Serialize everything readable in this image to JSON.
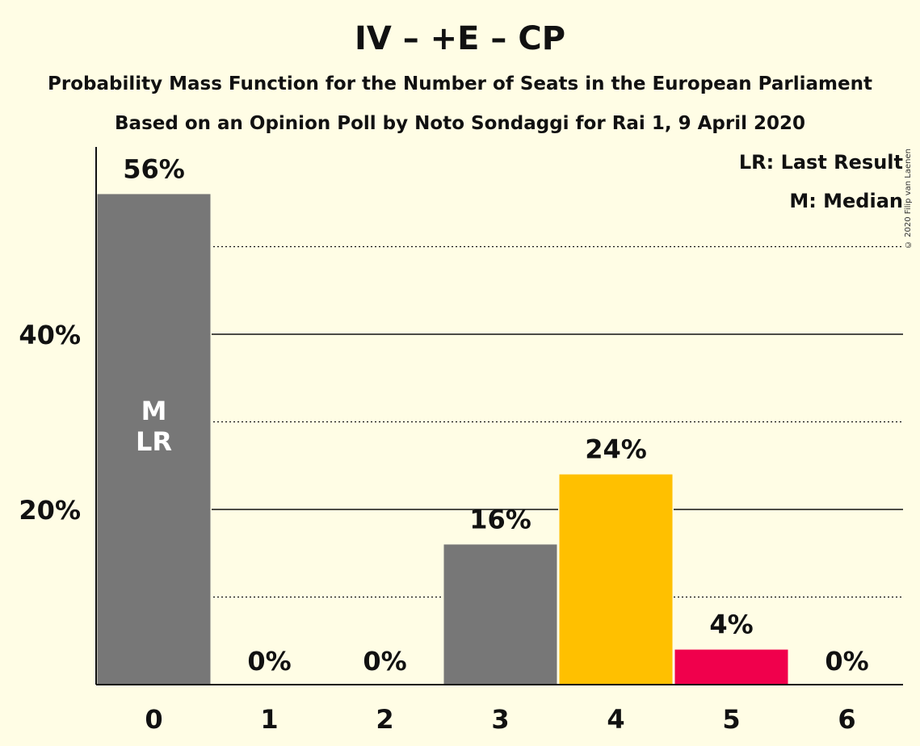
{
  "title": "IV – +E – CP",
  "subtitle": "Probability Mass Function for the Number of Seats in the European Parliament",
  "subtitle2": "Based on an Opinion Poll by Noto Sondaggi for Rai 1, 9 April 2020",
  "copyright": "© 2020 Filip van Laenen",
  "legend": {
    "last_result": "LR: Last Result",
    "median": "M: Median"
  },
  "colors": {
    "background": "#FFFDE5",
    "gray_bar": "#777777",
    "yellow_bar": "#FFC000",
    "pink_bar": "#F0004C"
  },
  "chart_data": {
    "type": "bar",
    "categories": [
      "0",
      "1",
      "2",
      "3",
      "4",
      "5",
      "6"
    ],
    "values": [
      56,
      0,
      0,
      16,
      24,
      4,
      0
    ],
    "value_labels": [
      "56%",
      "0%",
      "0%",
      "16%",
      "24%",
      "4%",
      "0%"
    ],
    "bar_colors": [
      "#777777",
      "#777777",
      "#777777",
      "#777777",
      "#FFC000",
      "#F0004C",
      "#777777"
    ],
    "ylim": [
      0,
      61
    ],
    "yticks": [
      20,
      40
    ],
    "ytick_labels": [
      "20%",
      "40%"
    ],
    "minor_gridlines": [
      10,
      30,
      50
    ],
    "annotations": [
      {
        "category": "0",
        "lines": [
          "M",
          "LR"
        ]
      }
    ],
    "xlabel": "",
    "ylabel": ""
  }
}
